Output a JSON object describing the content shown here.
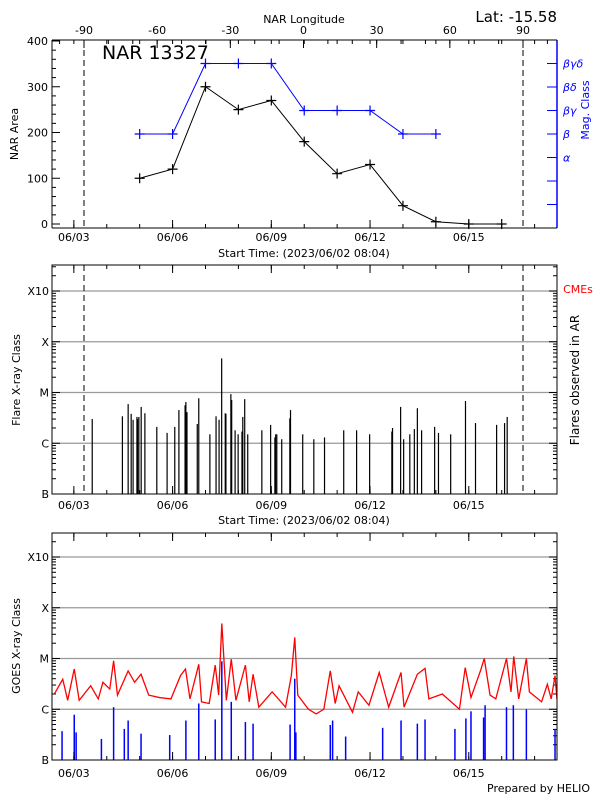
{
  "header": {
    "lat_label": "Lat: -15.58"
  },
  "footer": {
    "credit": "Prepared by HELIO"
  },
  "colors": {
    "area": "#000000",
    "mag_class": "#0000ff",
    "goes_long": "#ff0000",
    "goes_short": "#0000ff",
    "flares": "#000000",
    "grid": "#999999",
    "cme_label": "#ff0000"
  },
  "axis": {
    "xlim": [
      "2023-06-02 08:04",
      "2023-06-17 16:20"
    ],
    "xticks": [
      "2023-06-03 00:00",
      "2023-06-06 00:00",
      "2023-06-09 00:00",
      "2023-06-12 00:00",
      "2023-06-15 00:00"
    ],
    "xtick_labels": [
      "06/03",
      "06/06",
      "06/09",
      "06/12",
      "06/15"
    ],
    "xlabel": "Start Time: (2023/06/02 08:04)",
    "flux_ticks": [
      1e-07,
      1e-06,
      1e-05,
      0.0001,
      0.001
    ],
    "flux_tick_labels": [
      "B",
      "C",
      "M",
      "X",
      "X10"
    ],
    "flux_ylim": [
      1e-07,
      0.0037
    ]
  },
  "chart_data": [
    {
      "type": "line",
      "title": "NAR 13327",
      "ylabel": "NAR Area",
      "top_xlabel": "NAR Longitude",
      "top_xticks": [
        -90,
        -60,
        -30,
        0,
        30,
        60,
        90
      ],
      "top_xtick_labels": [
        "-90",
        "-60",
        "-30",
        "0",
        "30",
        "60",
        "90"
      ],
      "limb_longitudes": [
        -90,
        90
      ],
      "ylim": [
        0,
        400
      ],
      "yticks": [
        0,
        100,
        200,
        300,
        400
      ],
      "ytick_labels": [
        "0",
        "100",
        "200",
        "300",
        "400"
      ],
      "right_ylabel": "Mag. Class",
      "mag_class_levels": [
        "",
        "",
        "α",
        "β",
        "βγ",
        "βδ",
        "βγδ"
      ],
      "series": [
        {
          "key": "area",
          "x": [
            "2023-06-05 00:00",
            "2023-06-06 00:00",
            "2023-06-07 00:00",
            "2023-06-08 00:00",
            "2023-06-09 00:00",
            "2023-06-10 00:00",
            "2023-06-11 00:00",
            "2023-06-12 00:00",
            "2023-06-13 00:00",
            "2023-06-14 00:00",
            "2023-06-15 00:00",
            "2023-06-16 00:00"
          ],
          "values": [
            100,
            120,
            300,
            250,
            270,
            180,
            110,
            130,
            40,
            5,
            0,
            0
          ]
        },
        {
          "key": "mag_class",
          "x": [
            "2023-06-05 00:00",
            "2023-06-06 00:00",
            "2023-06-07 00:00",
            "2023-06-08 00:00",
            "2023-06-09 00:00",
            "2023-06-10 00:00",
            "2023-06-11 00:00",
            "2023-06-12 00:00",
            "2023-06-13 00:00",
            "2023-06-14 00:00"
          ],
          "values": [
            "β",
            "β",
            "βγδ",
            "βγδ",
            "βγδ",
            "βγ",
            "βγ",
            "βγ",
            "β",
            "β"
          ]
        }
      ]
    },
    {
      "type": "bar",
      "ylabel": "Flare X-ray Class",
      "right_ylabel": "Flares observed in AR",
      "cme_label": "CMEs",
      "limb_longitudes": [
        -90,
        90
      ],
      "flares": [
        [
          "2023-06-03 13:24",
          "C3.0"
        ],
        [
          "2023-06-04 11:24",
          "C3.4"
        ],
        [
          "2023-06-04 15:36",
          "C5.9"
        ],
        [
          "2023-06-04 17:48",
          "C3.8"
        ],
        [
          "2023-06-04 19:12",
          "C2.9"
        ],
        [
          "2023-06-04 22:00",
          "C3.3"
        ],
        [
          "2023-06-04 22:30",
          "C3.0"
        ],
        [
          "2023-06-04 23:24",
          "C3.3"
        ],
        [
          "2023-06-05 01:06",
          "C5.2"
        ],
        [
          "2023-06-05 03:48",
          "C3.9"
        ],
        [
          "2023-06-05 12:30",
          "C2.1"
        ],
        [
          "2023-06-05 20:00",
          "C1.6"
        ],
        [
          "2023-06-06 01:36",
          "C2.1"
        ],
        [
          "2023-06-06 04:36",
          "C4.5"
        ],
        [
          "2023-06-06 09:06",
          "C5.6"
        ],
        [
          "2023-06-06 09:42",
          "C6.5"
        ],
        [
          "2023-06-06 10:30",
          "C4.1"
        ],
        [
          "2023-06-06 18:00",
          "C2.4"
        ],
        [
          "2023-06-06 19:06",
          "C7.7"
        ],
        [
          "2023-06-07 03:12",
          "C1.5"
        ],
        [
          "2023-06-07 07:42",
          "C3.4"
        ],
        [
          "2023-06-07 09:54",
          "C2.9"
        ],
        [
          "2023-06-07 11:48",
          "M4.7"
        ],
        [
          "2023-06-07 14:24",
          "C3.9"
        ],
        [
          "2023-06-07 14:54",
          "C3.8"
        ],
        [
          "2023-06-07 18:30",
          "C9.3"
        ],
        [
          "2023-06-07 19:06",
          "C7.1"
        ],
        [
          "2023-06-07 21:36",
          "C1.8"
        ],
        [
          "2023-06-07 23:48",
          "C1.5"
        ],
        [
          "2023-06-08 02:36",
          "C1.7"
        ],
        [
          "2023-06-08 03:12",
          "C3.3"
        ],
        [
          "2023-06-08 04:36",
          "C7.4"
        ],
        [
          "2023-06-08 06:48",
          "C1.5"
        ],
        [
          "2023-06-08 17:06",
          "C1.8"
        ],
        [
          "2023-06-08 23:30",
          "C2.3"
        ],
        [
          "2023-06-09 02:36",
          "C1.3"
        ],
        [
          "2023-06-09 03:12",
          "C1.5"
        ],
        [
          "2023-06-09 04:00",
          "C1.5"
        ],
        [
          "2023-06-09 07:36",
          "C1.2"
        ],
        [
          "2023-06-09 13:30",
          "C3.1"
        ],
        [
          "2023-06-09 14:00",
          "C4.5"
        ],
        [
          "2023-06-09 22:54",
          "C1.5"
        ],
        [
          "2023-06-10 07:00",
          "C1.2"
        ],
        [
          "2023-06-10 14:48",
          "C1.3"
        ],
        [
          "2023-06-11 04:48",
          "C1.8"
        ],
        [
          "2023-06-11 14:12",
          "C1.8"
        ],
        [
          "2023-06-11 23:42",
          "C1.5"
        ],
        [
          "2023-06-12 15:54",
          "C1.7"
        ],
        [
          "2023-06-12 16:24",
          "C2.0"
        ],
        [
          "2023-06-12 22:18",
          "C5.2"
        ],
        [
          "2023-06-13 00:30",
          "C1.2"
        ],
        [
          "2023-06-13 05:00",
          "C1.5"
        ],
        [
          "2023-06-13 08:18",
          "C1.9"
        ],
        [
          "2023-06-13 10:30",
          "C4.9"
        ],
        [
          "2023-06-13 13:36",
          "C1.8"
        ],
        [
          "2023-06-13 23:06",
          "C2.1"
        ],
        [
          "2023-06-14 01:54",
          "C1.6"
        ],
        [
          "2023-06-14 10:48",
          "C1.5"
        ],
        [
          "2023-06-14 21:36",
          "C6.8"
        ],
        [
          "2023-06-15 04:54",
          "C2.5"
        ],
        [
          "2023-06-15 20:18",
          "C2.3"
        ],
        [
          "2023-06-16 02:06",
          "C2.5"
        ],
        [
          "2023-06-16 04:00",
          "C3.3"
        ]
      ]
    },
    {
      "type": "line",
      "ylabel": "GOES X-ray Class",
      "series": [
        {
          "key": "goes_long",
          "points": [
            [
              "2023-06-02 09:48",
              2e-06
            ],
            [
              "2023-06-02 15:54",
              3.9e-06
            ],
            [
              "2023-06-02 19:30",
              1.5e-06
            ],
            [
              "2023-06-03 00:17",
              6.2e-06
            ],
            [
              "2023-06-03 03:54",
              1.5e-06
            ],
            [
              "2023-06-03 12:18",
              2.9e-06
            ],
            [
              "2023-06-03 17:48",
              1.6e-06
            ],
            [
              "2023-06-03 21:12",
              3.4e-06
            ],
            [
              "2023-06-04 02:12",
              2.5e-06
            ],
            [
              "2023-06-04 05:00",
              9e-06
            ],
            [
              "2023-06-04 07:48",
              1.9e-06
            ],
            [
              "2023-06-04 15:36",
              5.7e-06
            ],
            [
              "2023-06-04 20:18",
              3.4e-06
            ],
            [
              "2023-06-05 01:00",
              4.9e-06
            ],
            [
              "2023-06-05 06:36",
              1.9e-06
            ],
            [
              "2023-06-05 14:24",
              1.7e-06
            ],
            [
              "2023-06-05 22:48",
              1.6e-06
            ],
            [
              "2023-06-06 05:48",
              4.6e-06
            ],
            [
              "2023-06-06 09:24",
              6.2e-06
            ],
            [
              "2023-06-06 12:42",
              1.6e-06
            ],
            [
              "2023-06-06 19:06",
              7.7e-06
            ],
            [
              "2023-06-06 21:06",
              1.4e-06
            ],
            [
              "2023-06-07 02:42",
              1.3e-06
            ],
            [
              "2023-06-07 07:06",
              7.4e-06
            ],
            [
              "2023-06-07 09:36",
              1.9e-06
            ],
            [
              "2023-06-07 11:54",
              4.9e-05
            ],
            [
              "2023-06-07 15:12",
              1.5e-06
            ],
            [
              "2023-06-07 18:48",
              9.7e-06
            ],
            [
              "2023-06-07 22:12",
              1.5e-06
            ],
            [
              "2023-06-08 05:06",
              7.4e-06
            ],
            [
              "2023-06-08 07:54",
              1.4e-06
            ],
            [
              "2023-06-08 10:42",
              4.9e-06
            ],
            [
              "2023-06-08 14:54",
              1.1e-06
            ],
            [
              "2023-06-09 00:36",
              2.2e-06
            ],
            [
              "2023-06-09 10:24",
              1.1e-06
            ],
            [
              "2023-06-09 14:36",
              4.6e-06
            ],
            [
              "2023-06-09 17:06",
              2.6e-05
            ],
            [
              "2023-06-09 19:18",
              1.9e-06
            ],
            [
              "2023-06-10 03:06",
              1e-06
            ],
            [
              "2023-06-10 08:42",
              8.1e-07
            ],
            [
              "2023-06-10 14:18",
              1e-06
            ],
            [
              "2023-06-10 19:00",
              5.7e-06
            ],
            [
              "2023-06-10 22:36",
              1.3e-06
            ],
            [
              "2023-06-11 01:24",
              2.9e-06
            ],
            [
              "2023-06-11 11:12",
              8.7e-07
            ],
            [
              "2023-06-11 15:24",
              2.2e-06
            ],
            [
              "2023-06-11 23:12",
              1.2e-06
            ],
            [
              "2023-06-12 06:42",
              5.3e-06
            ],
            [
              "2023-06-12 13:36",
              1.1e-06
            ],
            [
              "2023-06-12 22:36",
              5.3e-06
            ],
            [
              "2023-06-13 00:48",
              1.1e-06
            ],
            [
              "2023-06-13 10:30",
              4.9e-06
            ],
            [
              "2023-06-13 16:06",
              6.4e-06
            ],
            [
              "2023-06-13 18:54",
              1.6e-06
            ],
            [
              "2023-06-14 04:42",
              2e-06
            ],
            [
              "2023-06-14 17:12",
              1e-06
            ],
            [
              "2023-06-14 21:24",
              6.6e-06
            ],
            [
              "2023-06-15 01:36",
              1.7e-06
            ],
            [
              "2023-06-15 08:30",
              5.7e-06
            ],
            [
              "2023-06-15 11:18",
              1e-05
            ],
            [
              "2023-06-15 15:30",
              1.9e-06
            ],
            [
              "2023-06-15 19:42",
              1.6e-06
            ],
            [
              "2023-06-16 03:30",
              1e-05
            ],
            [
              "2023-06-16 06:48",
              2.2e-06
            ],
            [
              "2023-06-16 08:48",
              1.1e-05
            ],
            [
              "2023-06-16 12:24",
              1.6e-06
            ],
            [
              "2023-06-16 18:00",
              1e-05
            ],
            [
              "2023-06-16 20:12",
              2.2e-06
            ],
            [
              "2023-06-17 05:06",
              1.4e-06
            ],
            [
              "2023-06-17 09:18",
              3.1e-06
            ],
            [
              "2023-06-17 12:06",
              1.6e-06
            ],
            [
              "2023-06-17 14:54",
              4.6e-06
            ],
            [
              "2023-06-17 16:18",
              1.6e-06
            ]
          ]
        },
        {
          "key": "goes_short",
          "points": [
            [
              "2023-06-02 15:24",
              3.7e-07
            ],
            [
              "2023-06-03 00:17",
              7.8e-07
            ],
            [
              "2023-06-03 01:40",
              3.5e-07
            ],
            [
              "2023-06-03 20:06",
              2.6e-07
            ],
            [
              "2023-06-04 05:00",
              1.1e-06
            ],
            [
              "2023-06-04 12:48",
              4.1e-07
            ],
            [
              "2023-06-04 15:36",
              6e-07
            ],
            [
              "2023-06-05 01:00",
              3.3e-07
            ],
            [
              "2023-06-05 21:54",
              3.1e-07
            ],
            [
              "2023-06-06 09:42",
              6e-07
            ],
            [
              "2023-06-06 19:06",
              1.3e-06
            ],
            [
              "2023-06-07 07:06",
              6.3e-07
            ],
            [
              "2023-06-07 11:54",
              8.8e-06
            ],
            [
              "2023-06-07 18:48",
              1.4e-06
            ],
            [
              "2023-06-08 05:06",
              5.6e-07
            ],
            [
              "2023-06-08 10:42",
              5.2e-07
            ],
            [
              "2023-06-09 13:42",
              5e-07
            ],
            [
              "2023-06-09 17:06",
              4e-06
            ],
            [
              "2023-06-09 17:54",
              3.5e-07
            ],
            [
              "2023-06-10 19:00",
              4.9e-07
            ],
            [
              "2023-06-10 20:42",
              6e-07
            ],
            [
              "2023-06-11 06:12",
              2.9e-07
            ],
            [
              "2023-06-12 09:12",
              4.3e-07
            ],
            [
              "2023-06-12 22:36",
              6e-07
            ],
            [
              "2023-06-13 10:30",
              5.2e-07
            ],
            [
              "2023-06-13 16:06",
              6.3e-07
            ],
            [
              "2023-06-14 13:54",
              4.1e-07
            ],
            [
              "2023-06-14 21:54",
              6.6e-07
            ],
            [
              "2023-06-15 01:36",
              9.1e-07
            ],
            [
              "2023-06-15 10:48",
              6.9e-07
            ],
            [
              "2023-06-15 11:54",
              1.2e-06
            ],
            [
              "2023-06-16 03:30",
              1.1e-06
            ],
            [
              "2023-06-16 08:30",
              1.2e-06
            ],
            [
              "2023-06-16 18:00",
              1e-06
            ],
            [
              "2023-06-17 14:54",
              4.1e-07
            ]
          ]
        }
      ]
    }
  ]
}
